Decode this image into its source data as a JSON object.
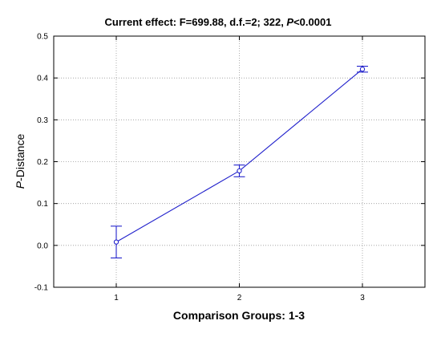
{
  "chart_data": {
    "type": "line",
    "title": {
      "prefix": "Current effect: F=699.88, d.f.=2; 322, ",
      "p_symbol": "P",
      "suffix": "<0.0001"
    },
    "xlabel": "Comparison Groups: 1-3",
    "ylabel": {
      "italic": "P",
      "rest": "-Distance"
    },
    "categories": [
      "1",
      "2",
      "3"
    ],
    "yticks": [
      "-0.1",
      "0.0",
      "0.1",
      "0.2",
      "0.3",
      "0.4",
      "0.5"
    ],
    "ylim": [
      -0.1,
      0.5
    ],
    "grid": true,
    "series": [
      {
        "values": [
          0.008,
          0.178,
          0.421
        ],
        "error_low": [
          -0.03,
          0.164,
          0.414
        ],
        "error_high": [
          0.046,
          0.192,
          0.428
        ]
      }
    ],
    "colors": {
      "series": "#2222cc",
      "grid": "#999999",
      "frame": "#000000"
    }
  }
}
